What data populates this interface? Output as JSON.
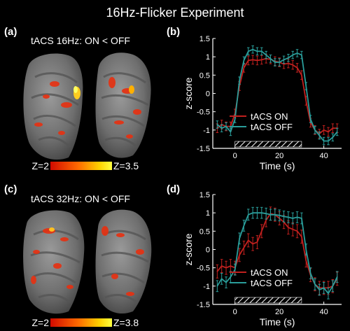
{
  "title": "16Hz-Flicker Experiment",
  "colors": {
    "tacs_on": "#c0201e",
    "tacs_off": "#2a9d9a",
    "axis": "#ffffff",
    "background": "#000000"
  },
  "brain_panels": [
    {
      "label": "(a)",
      "subtitle": "tACS 16Hz: ON < OFF",
      "colorbar_min": "Z=2",
      "colorbar_max": "Z=3.5"
    },
    {
      "label": "(c)",
      "subtitle": "tACS 32Hz: ON < OFF",
      "colorbar_min": "Z=2",
      "colorbar_max": "Z=3.8"
    }
  ],
  "chart_data": [
    {
      "type": "line",
      "panel_label": "(b)",
      "xlabel": "Time (s)",
      "ylabel": "z-score",
      "xlim": [
        -10,
        48
      ],
      "ylim": [
        -1.5,
        1.5
      ],
      "xticks": [
        0,
        20,
        40
      ],
      "yticks": [
        -1.5,
        -1,
        -0.5,
        0,
        0.5,
        1,
        1.5
      ],
      "stimulus_bar": [
        0,
        30
      ],
      "legend": "inside lower-left",
      "series": [
        {
          "name": "tACS ON",
          "color": "#c0201e",
          "x": [
            -8,
            -6,
            -4,
            -2,
            0,
            2,
            4,
            6,
            8,
            10,
            12,
            14,
            16,
            18,
            20,
            22,
            24,
            26,
            28,
            30,
            32,
            34,
            36,
            38,
            40,
            42,
            44,
            46
          ],
          "y": [
            -0.95,
            -0.85,
            -0.9,
            -0.9,
            -0.55,
            0.2,
            0.7,
            0.9,
            0.92,
            0.9,
            0.92,
            0.95,
            0.93,
            0.88,
            0.85,
            0.8,
            0.82,
            0.78,
            0.7,
            0.5,
            -0.2,
            -0.8,
            -1.0,
            -1.1,
            -1.0,
            -1.05,
            -0.95,
            -0.95
          ],
          "err": 0.12
        },
        {
          "name": "tACS OFF",
          "color": "#2a9d9a",
          "x": [
            -8,
            -6,
            -4,
            -2,
            0,
            2,
            4,
            6,
            8,
            10,
            12,
            14,
            16,
            18,
            20,
            22,
            24,
            26,
            28,
            30,
            32,
            34,
            36,
            38,
            40,
            42,
            44,
            46
          ],
          "y": [
            -0.85,
            -0.95,
            -0.9,
            -1.05,
            -0.7,
            0.35,
            0.9,
            1.15,
            1.2,
            1.15,
            1.15,
            1.05,
            0.95,
            0.85,
            0.85,
            0.92,
            0.97,
            1.05,
            1.1,
            1.05,
            0.2,
            -0.7,
            -1.0,
            -1.15,
            -1.3,
            -1.3,
            -1.2,
            -1.05
          ],
          "err": 0.1
        }
      ]
    },
    {
      "type": "line",
      "panel_label": "(d)",
      "xlabel": "Time (s)",
      "ylabel": "z-score",
      "xlim": [
        -10,
        48
      ],
      "ylim": [
        -1.5,
        1.5
      ],
      "xticks": [
        0,
        20,
        40
      ],
      "yticks": [
        -1.5,
        -1,
        -0.5,
        0,
        0.5,
        1,
        1.5
      ],
      "stimulus_bar": [
        0,
        30
      ],
      "legend": "inside lower-left",
      "series": [
        {
          "name": "tACS ON",
          "color": "#c0201e",
          "x": [
            -8,
            -6,
            -4,
            -2,
            0,
            2,
            4,
            6,
            8,
            10,
            12,
            14,
            16,
            18,
            20,
            22,
            24,
            26,
            28,
            30,
            32,
            34,
            36,
            38,
            40,
            42,
            44,
            46
          ],
          "y": [
            -0.6,
            -0.45,
            -0.5,
            -0.45,
            -0.5,
            -0.15,
            0.05,
            0.25,
            0.15,
            0.2,
            0.5,
            0.8,
            0.98,
            0.95,
            0.85,
            0.75,
            0.6,
            0.55,
            0.5,
            0.35,
            -0.3,
            -0.7,
            -0.95,
            -1.05,
            -1.05,
            -1.05,
            -1.0,
            -0.8
          ],
          "err": 0.18
        },
        {
          "name": "tACS OFF",
          "color": "#2a9d9a",
          "x": [
            -8,
            -6,
            -4,
            -2,
            0,
            2,
            4,
            6,
            8,
            10,
            12,
            14,
            16,
            18,
            20,
            22,
            24,
            26,
            28,
            30,
            32,
            34,
            36,
            38,
            40,
            42,
            44,
            46
          ],
          "y": [
            -1.0,
            -0.8,
            -0.9,
            -0.75,
            -0.55,
            0.3,
            0.65,
            0.95,
            1.0,
            1.0,
            1.0,
            0.98,
            0.95,
            0.95,
            0.93,
            0.9,
            0.88,
            0.85,
            0.88,
            0.85,
            0.0,
            -0.65,
            -0.95,
            -1.1,
            -1.05,
            -1.2,
            -1.0,
            -0.75
          ],
          "err": 0.15
        }
      ]
    }
  ]
}
